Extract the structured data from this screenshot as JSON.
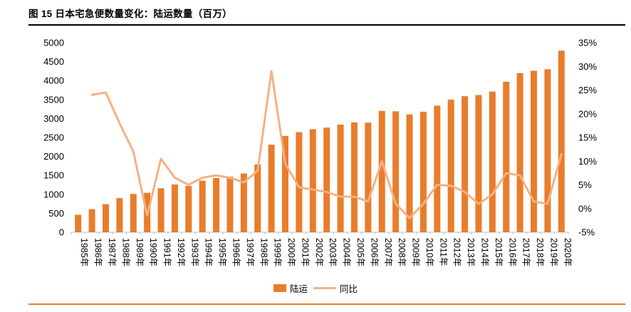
{
  "title": "图 15 日本宅急便数量变化：陆运数量（百万）",
  "colors": {
    "bar": "#E87D2B",
    "line": "#F5B183",
    "header_rule": "#000000",
    "footer_rule": "#E87D2B",
    "axis_line": "#BFBFBF",
    "text": "#000000"
  },
  "chart_data": {
    "type": "bar+line",
    "title": "图 15 日本宅急便数量变化：陆运数量（百万）",
    "categories": [
      "1985年",
      "1986年",
      "1987年",
      "1988年",
      "1989年",
      "1990年",
      "1991年",
      "1992年",
      "1993年",
      "1994年",
      "1995年",
      "1996年",
      "1997年",
      "1998年",
      "1999年",
      "2000年",
      "2001年",
      "2002年",
      "2003年",
      "2004年",
      "2005年",
      "2006年",
      "2007年",
      "2008年",
      "2009年",
      "2010年",
      "2011年",
      "2012年",
      "2013年",
      "2014年",
      "2015年",
      "2016年",
      "2017年",
      "2018年",
      "2019年",
      "2020年"
    ],
    "series": [
      {
        "name": "陆运",
        "type": "bar",
        "axis": "left",
        "values": [
          460,
          610,
          740,
          900,
          1010,
          1040,
          1160,
          1260,
          1220,
          1360,
          1430,
          1470,
          1550,
          1790,
          2310,
          2540,
          2640,
          2720,
          2760,
          2840,
          2900,
          2890,
          3200,
          3190,
          3110,
          3180,
          3340,
          3500,
          3590,
          3620,
          3710,
          3970,
          4200,
          4260,
          4300,
          4790
        ]
      },
      {
        "name": "同比",
        "type": "line",
        "axis": "right",
        "values": [
          null,
          24,
          24.5,
          18,
          12,
          -1.5,
          10.5,
          6.5,
          5,
          6.5,
          7,
          6.5,
          5.5,
          8,
          29,
          9.5,
          4.5,
          4,
          3.5,
          2.5,
          2.5,
          1.5,
          10,
          1,
          -2,
          1,
          5,
          4.8,
          3.5,
          1,
          3,
          7.5,
          7,
          1.5,
          1,
          11.5
        ]
      }
    ],
    "left_axis": {
      "min": 0,
      "max": 5000,
      "step": 500,
      "ticks": [
        "0",
        "500",
        "1000",
        "1500",
        "2000",
        "2500",
        "3000",
        "3500",
        "4000",
        "4500",
        "5000"
      ]
    },
    "right_axis": {
      "min": -5,
      "max": 35,
      "step": 5,
      "format": "percent",
      "ticks": [
        "-5%",
        "0%",
        "5%",
        "10%",
        "15%",
        "20%",
        "25%",
        "30%",
        "35%"
      ]
    },
    "grid": false,
    "legend_position": "bottom",
    "legend": [
      "陆运",
      "同比"
    ]
  }
}
